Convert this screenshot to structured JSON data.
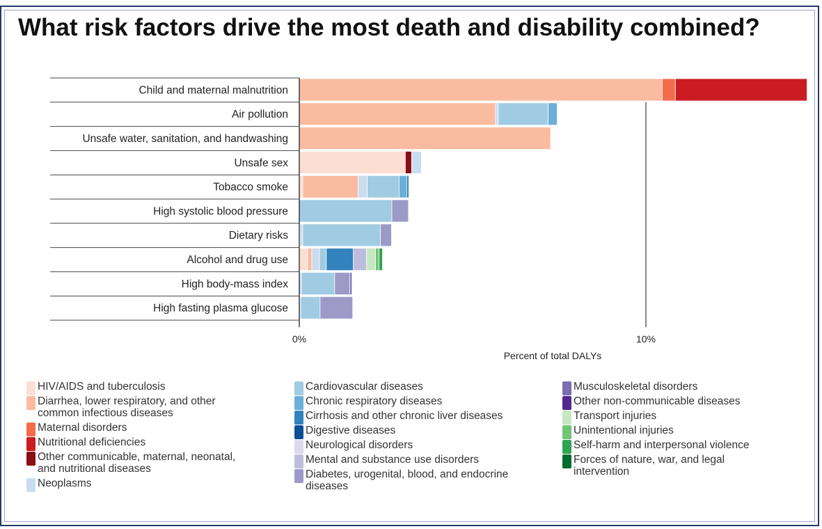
{
  "title": "What risk factors drive the most death and disability combined?",
  "colors": {
    "HIV/AIDS and tuberculosis": "#fbdfd3",
    "Diarrhea, lower respiratory, and other common infectious diseases": "#fbbba0",
    "Maternal disorders": "#f46c4b",
    "Nutritional deficiencies": "#cb1c24",
    "Other communicable, maternal, neonatal, and nutritional diseases": "#8a0d14",
    "Neoplasms": "#c9ddf0",
    "Cardiovascular diseases": "#a1cbe2",
    "Chronic respiratory diseases": "#6baed6",
    "Cirrhosis and other chronic liver diseases": "#3282bd",
    "Digestive diseases": "#0e4f93",
    "Neurological disorders": "#dcdaeb",
    "Mental and substance use disorders": "#bdbcdc",
    "Diabetes, urogenital, blood, and endocrine diseases": "#9e9ac8",
    "Musculoskeletal disorders": "#7a6db0",
    "Other non-communicable diseases": "#53278f",
    "Transport injuries": "#c5e8c1",
    "Unintentional injuries": "#73c476",
    "Self-harm and interpersonal violence": "#31a354",
    "Forces of nature, war, and legal intervention": "#006d2c"
  },
  "chart_data": {
    "type": "bar",
    "orientation": "horizontal",
    "stacked": true,
    "xlabel": "Percent of total DALYs",
    "ticks": [
      "0%",
      "10%"
    ],
    "tick_values": [
      0,
      10
    ],
    "xlim": [
      0,
      14.65
    ],
    "categories": [
      "Child and maternal malnutrition",
      "Air pollution",
      "Unsafe water, sanitation, and handwashing",
      "Unsafe sex",
      "Tobacco smoke",
      "High systolic blood pressure",
      "Dietary risks",
      "Alcohol and drug use",
      "High body-mass index",
      "High fasting plasma glucose"
    ],
    "rows": [
      [
        {
          "cause": "Diarrhea, lower respiratory, and other common infectious diseases",
          "value": 10.47
        },
        {
          "cause": "Maternal disorders",
          "value": 0.38
        },
        {
          "cause": "Nutritional deficiencies",
          "value": 3.8
        }
      ],
      [
        {
          "cause": "Diarrhea, lower respiratory, and other common infectious diseases",
          "value": 5.66
        },
        {
          "cause": "Neoplasms",
          "value": 0.08
        },
        {
          "cause": "Cardiovascular diseases",
          "value": 1.44
        },
        {
          "cause": "Chronic respiratory diseases",
          "value": 0.26
        }
      ],
      [
        {
          "cause": "Diarrhea, lower respiratory, and other common infectious diseases",
          "value": 7.25
        }
      ],
      [
        {
          "cause": "HIV/AIDS and tuberculosis",
          "value": 3.06
        },
        {
          "cause": "Other communicable, maternal, neonatal, and nutritional diseases",
          "value": 0.18
        },
        {
          "cause": "Neoplasms",
          "value": 0.28
        }
      ],
      [
        {
          "cause": "HIV/AIDS and tuberculosis",
          "value": 0.1
        },
        {
          "cause": "Diarrhea, lower respiratory, and other common infectious diseases",
          "value": 1.6
        },
        {
          "cause": "Neoplasms",
          "value": 0.26
        },
        {
          "cause": "Cardiovascular diseases",
          "value": 0.92
        },
        {
          "cause": "Chronic respiratory diseases",
          "value": 0.22
        },
        {
          "cause": "Cirrhosis and other chronic liver diseases",
          "value": 0.06
        }
      ],
      [
        {
          "cause": "Cardiovascular diseases",
          "value": 2.67
        },
        {
          "cause": "Diabetes, urogenital, blood, and endocrine diseases",
          "value": 0.48
        }
      ],
      [
        {
          "cause": "HIV/AIDS and tuberculosis",
          "value": 0.02
        },
        {
          "cause": "Neoplasms",
          "value": 0.08
        },
        {
          "cause": "Cardiovascular diseases",
          "value": 2.24
        },
        {
          "cause": "Diabetes, urogenital, blood, and endocrine diseases",
          "value": 0.32
        }
      ],
      [
        {
          "cause": "HIV/AIDS and tuberculosis",
          "value": 0.24
        },
        {
          "cause": "Diarrhea, lower respiratory, and other common infectious diseases",
          "value": 0.12
        },
        {
          "cause": "Neoplasms",
          "value": 0.22
        },
        {
          "cause": "Cardiovascular diseases",
          "value": 0.2
        },
        {
          "cause": "Cirrhosis and other chronic liver diseases",
          "value": 0.78
        },
        {
          "cause": "Mental and substance use disorders",
          "value": 0.38
        },
        {
          "cause": "Transport injuries",
          "value": 0.26
        },
        {
          "cause": "Unintentional injuries",
          "value": 0.1
        },
        {
          "cause": "Self-harm and interpersonal violence",
          "value": 0.1
        }
      ],
      [
        {
          "cause": "Neoplasms",
          "value": 0.06
        },
        {
          "cause": "Cardiovascular diseases",
          "value": 0.96
        },
        {
          "cause": "Diabetes, urogenital, blood, and endocrine diseases",
          "value": 0.44
        },
        {
          "cause": "Musculoskeletal disorders",
          "value": 0.06
        }
      ],
      [
        {
          "cause": "Neoplasms",
          "value": 0.04
        },
        {
          "cause": "Cardiovascular diseases",
          "value": 0.56
        },
        {
          "cause": "Diabetes, urogenital, blood, and endocrine diseases",
          "value": 0.94
        }
      ]
    ]
  },
  "legend": {
    "columns": [
      [
        {
          "label": "HIV/AIDS and tuberculosis",
          "key": "HIV/AIDS and tuberculosis"
        },
        {
          "label": "Diarrhea, lower respiratory, and other\n   common infectious diseases",
          "key": "Diarrhea, lower respiratory, and other common infectious diseases"
        },
        {
          "label": "Maternal disorders",
          "key": "Maternal disorders"
        },
        {
          "label": "Nutritional deficiencies",
          "key": "Nutritional deficiencies"
        },
        {
          "label": "Other communicable, maternal, neonatal,\n   and nutritional diseases",
          "key": "Other communicable, maternal, neonatal, and nutritional diseases"
        },
        {
          "label": "Neoplasms",
          "key": "Neoplasms"
        }
      ],
      [
        {
          "label": "Cardiovascular diseases",
          "key": "Cardiovascular diseases"
        },
        {
          "label": "Chronic respiratory diseases",
          "key": "Chronic respiratory diseases"
        },
        {
          "label": "Cirrhosis and other chronic liver diseases",
          "key": "Cirrhosis and other chronic liver diseases"
        },
        {
          "label": "Digestive diseases",
          "key": "Digestive diseases"
        },
        {
          "label": "Neurological disorders",
          "key": "Neurological disorders"
        },
        {
          "label": "Mental and substance use disorders",
          "key": "Mental and substance use disorders"
        },
        {
          "label": "Diabetes, urogenital, blood, and endocrine\n   diseases",
          "key": "Diabetes, urogenital, blood, and endocrine diseases"
        }
      ],
      [
        {
          "label": "Musculoskeletal disorders",
          "key": "Musculoskeletal disorders"
        },
        {
          "label": "Other non-communicable diseases",
          "key": "Other non-communicable diseases"
        },
        {
          "label": "Transport injuries",
          "key": "Transport injuries"
        },
        {
          "label": "Unintentional injuries",
          "key": "Unintentional injuries"
        },
        {
          "label": "Self-harm and interpersonal violence",
          "key": "Self-harm and interpersonal violence"
        },
        {
          "label": "Forces of nature, war, and legal\n   intervention",
          "key": "Forces of nature, war, and legal intervention"
        }
      ]
    ]
  }
}
